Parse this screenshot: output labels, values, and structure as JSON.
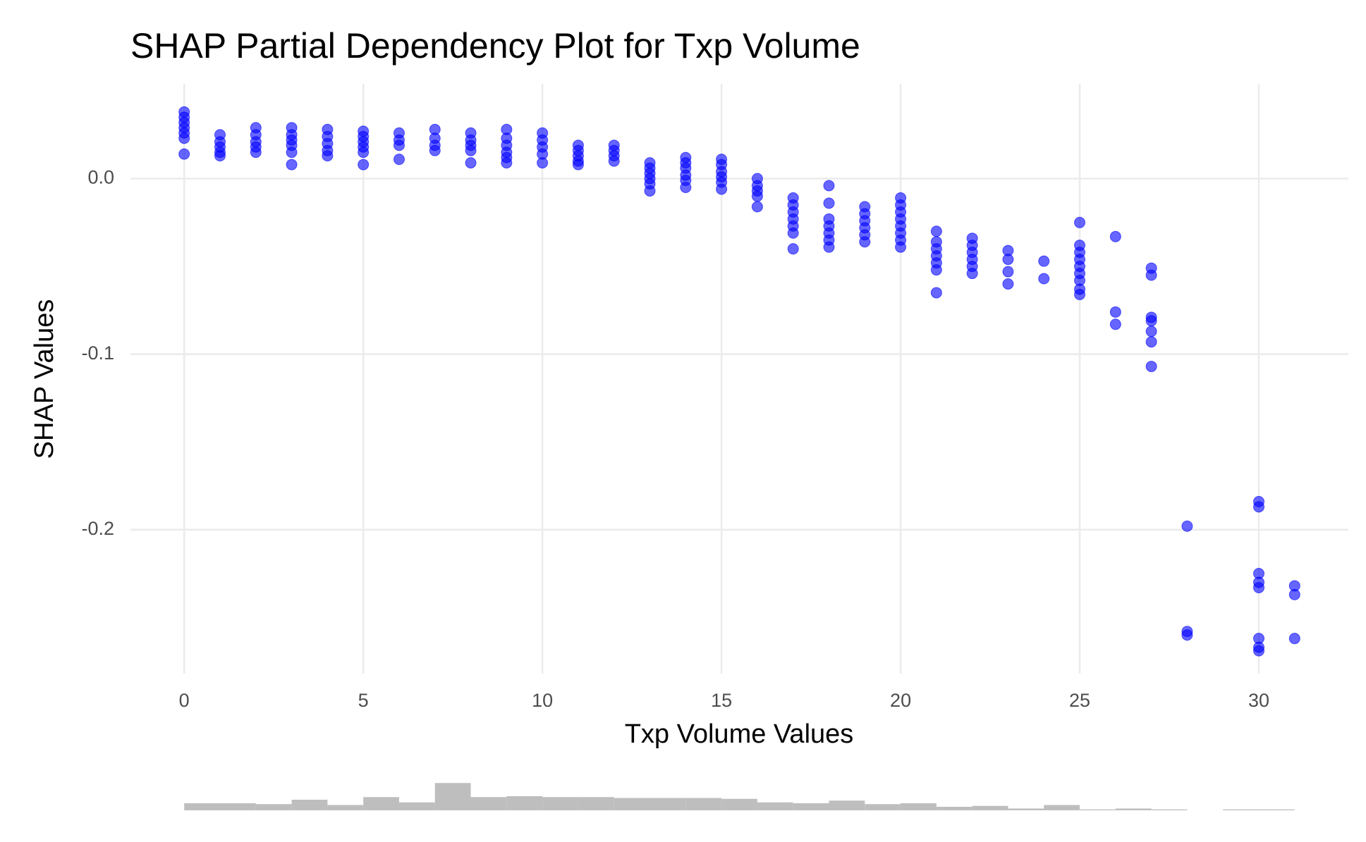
{
  "chart_data": [
    {
      "type": "scatter",
      "title": "SHAP Partial Dependency Plot for Txp Volume",
      "x_label": "Txp Volume Values",
      "y_label": "SHAP Values",
      "color": "#0000ff",
      "x": [
        0,
        0,
        0,
        0,
        0,
        0,
        0,
        1,
        1,
        1,
        1,
        1,
        2,
        2,
        2,
        2,
        2,
        3,
        3,
        3,
        3,
        3,
        3,
        4,
        4,
        4,
        4,
        4,
        5,
        5,
        5,
        5,
        5,
        5,
        6,
        6,
        6,
        6,
        7,
        7,
        7,
        7,
        8,
        8,
        8,
        8,
        8,
        9,
        9,
        9,
        9,
        9,
        9,
        10,
        10,
        10,
        10,
        10,
        11,
        11,
        11,
        11,
        11,
        12,
        12,
        12,
        12,
        13,
        13,
        13,
        13,
        13,
        13,
        14,
        14,
        14,
        14,
        14,
        14,
        15,
        15,
        15,
        15,
        15,
        15,
        16,
        16,
        16,
        16,
        16,
        17,
        17,
        17,
        17,
        17,
        17,
        17,
        18,
        18,
        18,
        18,
        18,
        18,
        18,
        19,
        19,
        19,
        19,
        19,
        19,
        20,
        20,
        20,
        20,
        20,
        20,
        20,
        20,
        21,
        21,
        21,
        21,
        21,
        21,
        21,
        22,
        22,
        22,
        22,
        22,
        22,
        23,
        23,
        23,
        23,
        24,
        24,
        25,
        25,
        25,
        25,
        25,
        25,
        25,
        25,
        25,
        26,
        26,
        26,
        27,
        27,
        27,
        27,
        27,
        27,
        27,
        28,
        28,
        28,
        30,
        30,
        30,
        30,
        30,
        30,
        30,
        30,
        31,
        31,
        31
      ],
      "values": [
        0.038,
        0.035,
        0.032,
        0.029,
        0.026,
        0.023,
        0.014,
        0.025,
        0.021,
        0.018,
        0.015,
        0.013,
        0.029,
        0.025,
        0.021,
        0.018,
        0.015,
        0.029,
        0.025,
        0.022,
        0.019,
        0.015,
        0.008,
        0.028,
        0.024,
        0.02,
        0.016,
        0.013,
        0.027,
        0.024,
        0.021,
        0.018,
        0.015,
        0.008,
        0.026,
        0.022,
        0.019,
        0.011,
        0.028,
        0.023,
        0.019,
        0.016,
        0.026,
        0.022,
        0.019,
        0.016,
        0.009,
        0.028,
        0.023,
        0.019,
        0.015,
        0.012,
        0.009,
        0.026,
        0.022,
        0.018,
        0.014,
        0.009,
        0.019,
        0.016,
        0.013,
        0.01,
        0.008,
        0.019,
        0.016,
        0.013,
        0.01,
        0.009,
        0.006,
        0.003,
        0,
        -0.003,
        -0.007,
        0.012,
        0.009,
        0.006,
        0.002,
        -0.001,
        -0.005,
        0.011,
        0.008,
        0.004,
        0.001,
        -0.002,
        -0.006,
        0,
        -0.004,
        -0.007,
        -0.01,
        -0.016,
        -0.011,
        -0.015,
        -0.019,
        -0.023,
        -0.027,
        -0.031,
        -0.04,
        -0.004,
        -0.014,
        -0.023,
        -0.027,
        -0.031,
        -0.035,
        -0.039,
        -0.016,
        -0.02,
        -0.024,
        -0.028,
        -0.032,
        -0.036,
        -0.011,
        -0.015,
        -0.019,
        -0.023,
        -0.027,
        -0.031,
        -0.035,
        -0.039,
        -0.03,
        -0.036,
        -0.04,
        -0.044,
        -0.048,
        -0.052,
        -0.065,
        -0.034,
        -0.038,
        -0.042,
        -0.046,
        -0.05,
        -0.054,
        -0.041,
        -0.046,
        -0.053,
        -0.06,
        -0.047,
        -0.057,
        -0.025,
        -0.038,
        -0.042,
        -0.046,
        -0.05,
        -0.054,
        -0.058,
        -0.063,
        -0.066,
        -0.033,
        -0.076,
        -0.083,
        -0.051,
        -0.055,
        -0.079,
        -0.081,
        -0.087,
        -0.093,
        -0.107,
        -0.198,
        -0.258,
        -0.26,
        -0.184,
        -0.187,
        -0.225,
        -0.23,
        -0.233,
        -0.262,
        -0.267,
        -0.269,
        -0.232,
        -0.237,
        -0.262
      ],
      "xlim": [
        -1.5,
        32.5
      ],
      "ylim": [
        -0.282,
        0.054
      ],
      "xticks": [
        0,
        5,
        10,
        15,
        20,
        25,
        30
      ],
      "yticks": [
        {
          "value": 0,
          "label": "0.0"
        },
        -0.1,
        -0.2
      ],
      "grid": true
    },
    {
      "type": "histogram",
      "color": "#bebebe",
      "bins": [
        0,
        1,
        2,
        3,
        4,
        5,
        6,
        7,
        8,
        9,
        10,
        11,
        12,
        13,
        14,
        15,
        16,
        17,
        18,
        19,
        20,
        21,
        22,
        23,
        24,
        25,
        26,
        27,
        28,
        29,
        30,
        31
      ],
      "values": [
        8,
        8,
        7,
        12,
        6,
        15,
        9,
        31,
        15,
        16,
        15,
        15,
        14,
        14,
        14,
        13,
        9,
        8,
        11,
        7,
        8,
        4,
        5,
        2,
        6,
        1,
        2,
        1,
        0,
        1,
        1
      ]
    }
  ]
}
